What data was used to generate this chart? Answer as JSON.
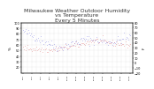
{
  "title": "Milwaukee Weather Outdoor Humidity\nvs Temperature\nEvery 5 Minutes",
  "title_fontsize": 4.5,
  "bg_color": "#ffffff",
  "grid_color": "#cccccc",
  "blue_color": "#0000cc",
  "red_color": "#cc0000",
  "ylim_left": [
    10,
    100
  ],
  "ylim_right": [
    -20,
    80
  ],
  "ylabel_left": "%",
  "ylabel_right": "F",
  "n_points": 120,
  "seed": 42
}
